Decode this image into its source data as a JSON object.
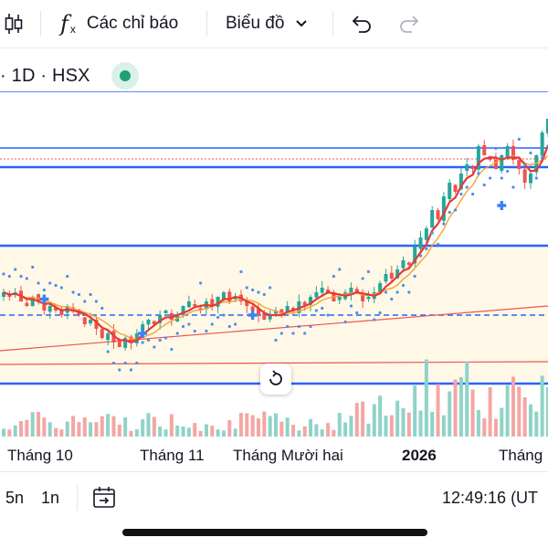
{
  "toolbar": {
    "candles_icon": "candles-icon",
    "indicators_label": "Các chỉ báo",
    "chart_type_label": "Biểu đồ",
    "undo_icon": "undo-icon",
    "redo_icon": "redo-icon"
  },
  "symbol": {
    "text": "· 1D · HSX",
    "status_color": "#1f9f7a"
  },
  "x_axis": {
    "labels": [
      "Tháng 10",
      "Tháng 11",
      "Tháng Mười hai",
      "2026",
      "Tháng"
    ]
  },
  "bottom": {
    "range_5n": "5n",
    "range_1n": "1n",
    "goto_date_icon": "calendar-goto-icon",
    "clock": "12:49:16 (UT"
  },
  "colors": {
    "up": "#26a69a",
    "down": "#ef5350",
    "level_line": "#2962ff",
    "ma_fast": "#e53935",
    "ma_slow": "#f2a431",
    "psar": "#4f8fe8"
  },
  "chart_data": {
    "type": "candlestick",
    "x_labels": [
      "Tháng 10",
      "Tháng 11",
      "Tháng Mười hai",
      "2026",
      "Tháng"
    ],
    "series": [
      {
        "type": "candlestick",
        "close": [
          100,
          99,
          100,
          98,
          97,
          99,
          98,
          96,
          97,
          96,
          95,
          97,
          96,
          95,
          93,
          94,
          92,
          90,
          91,
          89,
          88,
          90,
          89,
          91,
          93,
          94,
          93,
          95,
          96,
          94,
          95,
          97,
          98,
          97,
          96,
          98,
          97,
          99,
          100,
          98,
          99,
          98,
          97,
          96,
          95,
          94,
          95,
          96,
          95,
          97,
          96,
          98,
          97,
          99,
          100,
          101,
          100,
          98,
          99,
          100,
          101,
          100,
          98,
          99,
          100,
          102,
          104,
          103,
          105,
          107,
          106,
          110,
          112,
          114,
          118,
          116,
          121,
          124,
          122,
          126,
          128,
          127,
          132,
          130,
          129,
          127,
          130,
          132,
          129,
          127,
          124,
          126,
          130,
          135,
          138
        ]
      },
      {
        "type": "line",
        "name": "MA fast"
      },
      {
        "type": "line",
        "name": "MA slow"
      },
      {
        "type": "parabolic-sar"
      },
      {
        "type": "volume"
      }
    ]
  }
}
